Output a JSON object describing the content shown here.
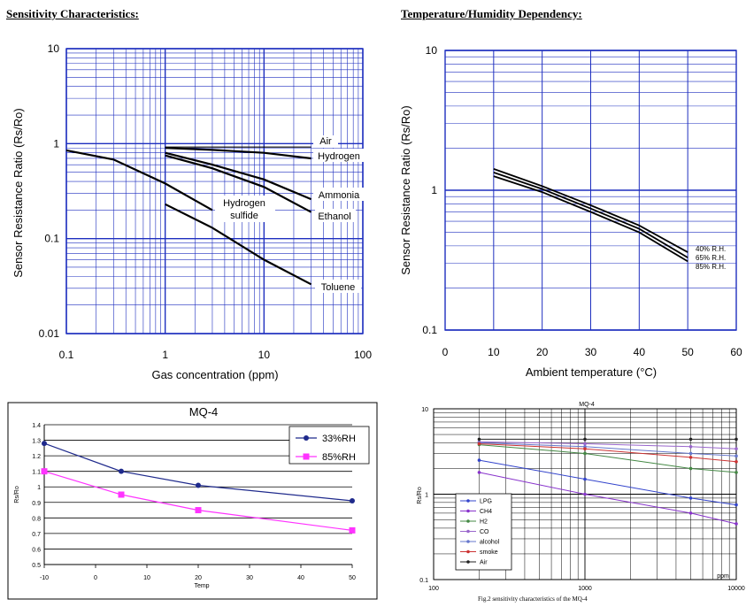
{
  "titles": {
    "left": "Sensitivity Characteristics:",
    "right": "Temperature/Humidity Dependency:"
  },
  "caption": "Fig.2 sensitivity characteristics of the MQ-4",
  "colors": {
    "grid": "#1e2fbf",
    "curve": "#000000",
    "blue_series": "#1f2a8c",
    "magenta_series": "#ff33ff"
  },
  "chart_data": [
    {
      "type": "line",
      "x_scale": "log",
      "y_scale": "log",
      "xlim": [
        0.1,
        100
      ],
      "ylim": [
        0.01,
        10
      ],
      "x_ticks": [
        "0.1",
        "1",
        "10",
        "100"
      ],
      "y_ticks": [
        "10",
        "1",
        "0.1",
        "0.01"
      ],
      "xlabel": "Gas concentration (ppm)",
      "ylabel": "Sensor Resistance Ratio (Rs/Ro)",
      "series": [
        {
          "name": "Air",
          "x": [
            1,
            30
          ],
          "y": [
            0.92,
            0.92
          ]
        },
        {
          "name": "Hydrogen",
          "x": [
            1,
            3,
            10,
            30
          ],
          "y": [
            0.9,
            0.86,
            0.8,
            0.7
          ]
        },
        {
          "name": "Ammonia",
          "x": [
            1,
            3,
            10,
            30
          ],
          "y": [
            0.8,
            0.6,
            0.42,
            0.26
          ]
        },
        {
          "name": "Ethanol",
          "x": [
            1,
            3,
            10,
            30
          ],
          "y": [
            0.75,
            0.55,
            0.35,
            0.19
          ]
        },
        {
          "name": "Hydrogen sulfide",
          "x": [
            0.1,
            0.3,
            1,
            3
          ],
          "y": [
            0.85,
            0.68,
            0.38,
            0.2
          ]
        },
        {
          "name": "Toluene",
          "x": [
            1,
            3,
            10,
            30
          ],
          "y": [
            0.23,
            0.13,
            0.06,
            0.033
          ]
        }
      ],
      "labels_raw": [
        "Air",
        "Hydrogen",
        "Ammonia",
        "Ethanol",
        "Hydrogen",
        "sulfide",
        "Toluene"
      ]
    },
    {
      "type": "line",
      "y_scale": "log",
      "xlim": [
        0,
        60
      ],
      "ylim": [
        0.1,
        10
      ],
      "x_ticks": [
        "0",
        "10",
        "20",
        "30",
        "40",
        "50",
        "60"
      ],
      "y_ticks": [
        "10",
        "1",
        "0.1"
      ],
      "xlabel": "Ambient temperature (°C)",
      "ylabel": "Sensor Resistance Ratio (Rs/Ro)",
      "series": [
        {
          "name": "40% R.H.",
          "x": [
            10,
            20,
            30,
            40,
            50
          ],
          "y": [
            1.42,
            1.07,
            0.78,
            0.56,
            0.36
          ]
        },
        {
          "name": "65% R.H.",
          "x": [
            10,
            20,
            30,
            40,
            50
          ],
          "y": [
            1.34,
            1.02,
            0.74,
            0.53,
            0.33
          ]
        },
        {
          "name": "85% R.H.",
          "x": [
            10,
            20,
            30,
            40,
            50
          ],
          "y": [
            1.26,
            0.97,
            0.7,
            0.5,
            0.31
          ]
        }
      ]
    },
    {
      "type": "line",
      "title": "MQ-4",
      "xlim": [
        -10,
        50
      ],
      "ylim": [
        0.5,
        1.4
      ],
      "x_ticks": [
        "-10",
        "0",
        "10",
        "20",
        "30",
        "40",
        "50"
      ],
      "y_ticks": [
        "1.4",
        "1.3",
        "1.2",
        "1.1",
        "1",
        "0.9",
        "0.8",
        "0.7",
        "0.6",
        "0.5"
      ],
      "xlabel": "Temp",
      "ylabel": "Rs/Ro",
      "series": [
        {
          "name": "33%RH",
          "x": [
            -10,
            5,
            20,
            50
          ],
          "y": [
            1.28,
            1.1,
            1.01,
            0.91
          ]
        },
        {
          "name": "85%RH",
          "x": [
            -10,
            5,
            20,
            50
          ],
          "y": [
            1.1,
            0.95,
            0.85,
            0.72
          ]
        }
      ]
    },
    {
      "type": "line",
      "title": "MQ-4",
      "x_scale": "log",
      "y_scale": "log",
      "xlim": [
        100,
        10000
      ],
      "ylim": [
        0.1,
        10
      ],
      "x_ticks": [
        "100",
        "1000",
        "10000"
      ],
      "y_ticks": [
        "10",
        "1",
        "0.1"
      ],
      "xlabel": "ppm",
      "ylabel": "Rs/Ro",
      "series": [
        {
          "name": "LPG",
          "color": "#3344cc",
          "x": [
            200,
            1000,
            5000,
            10000
          ],
          "y": [
            2.5,
            1.5,
            0.9,
            0.75
          ]
        },
        {
          "name": "CH4",
          "color": "#8833cc",
          "x": [
            200,
            1000,
            5000,
            10000
          ],
          "y": [
            1.8,
            1.0,
            0.6,
            0.45
          ]
        },
        {
          "name": "H2",
          "color": "#448844",
          "x": [
            200,
            1000,
            5000,
            10000
          ],
          "y": [
            3.8,
            3.0,
            2.0,
            1.8
          ]
        },
        {
          "name": "CO",
          "color": "#9966cc",
          "x": [
            200,
            1000,
            5000,
            10000
          ],
          "y": [
            4.1,
            3.9,
            3.6,
            3.4
          ]
        },
        {
          "name": "alcohol",
          "color": "#6677cc",
          "x": [
            200,
            1000,
            5000,
            10000
          ],
          "y": [
            4.0,
            3.6,
            3.0,
            2.8
          ]
        },
        {
          "name": "smoke",
          "color": "#cc3333",
          "x": [
            200,
            1000,
            5000,
            10000
          ],
          "y": [
            3.9,
            3.4,
            2.7,
            2.4
          ]
        },
        {
          "name": "Air",
          "color": "#222222",
          "x": [
            200,
            1000,
            5000,
            10000
          ],
          "y": [
            4.4,
            4.4,
            4.4,
            4.4
          ]
        }
      ]
    }
  ]
}
